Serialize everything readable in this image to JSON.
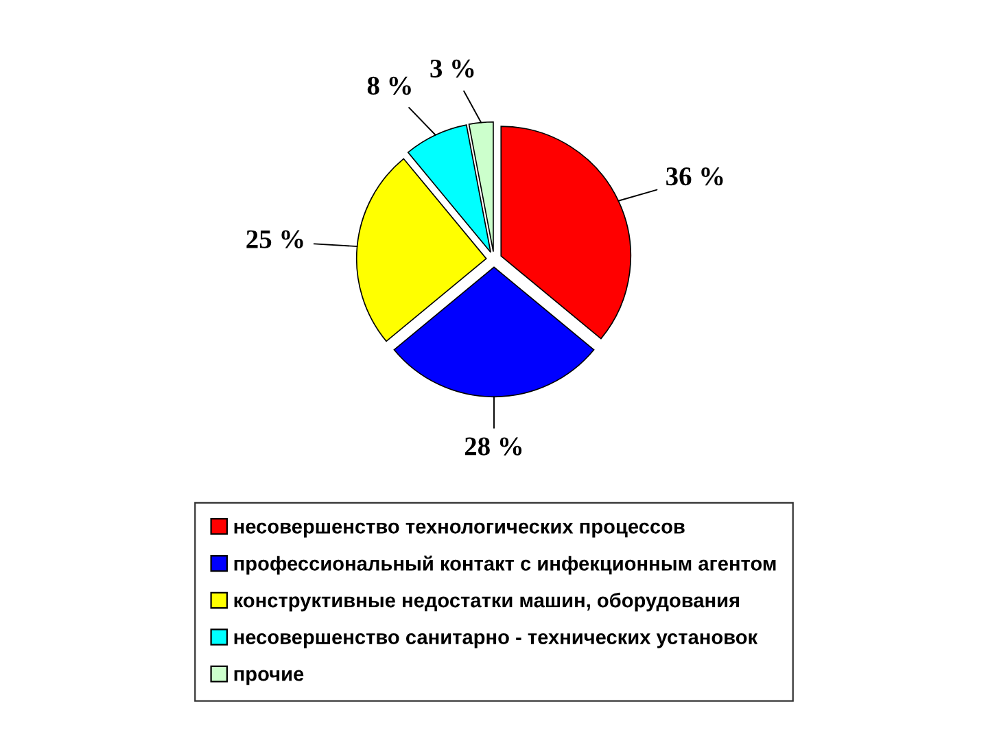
{
  "chart_data": {
    "type": "pie",
    "categories": [
      "несовершенство технологических процессов",
      "профессиональный контакт с инфекционным агентом",
      "конструктивные недостатки машин, оборудования",
      "несовершенство санитарно - технических установок",
      "прочие"
    ],
    "values": [
      36,
      28,
      25,
      8,
      3
    ],
    "colors": [
      "#ff0000",
      "#0000ff",
      "#ffff00",
      "#00ffff",
      "#ccffcc"
    ],
    "value_labels": [
      "36 %",
      "28 %",
      "25 %",
      "8 %",
      "3 %"
    ],
    "legend": "bottom"
  }
}
